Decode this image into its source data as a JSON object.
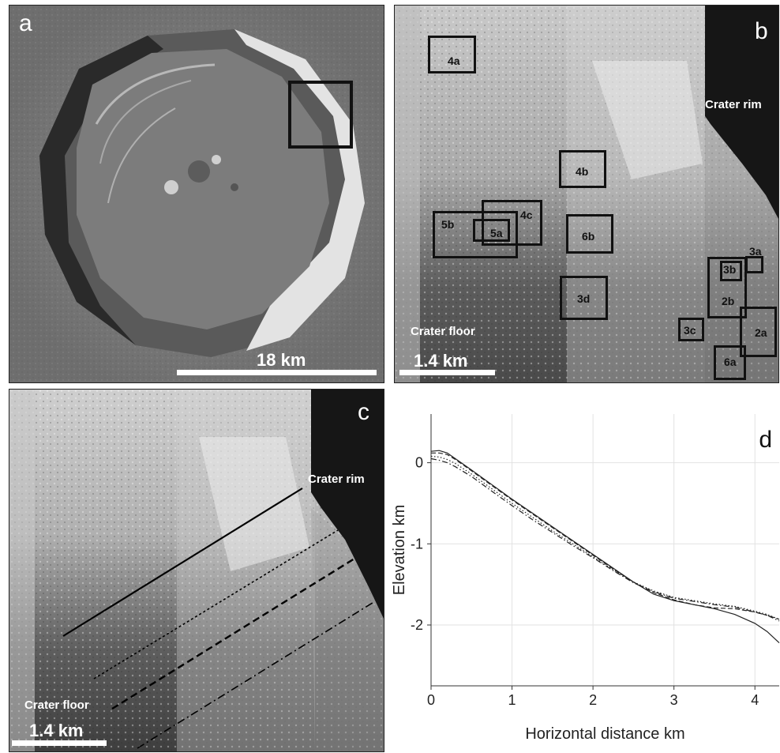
{
  "panels": {
    "a": {
      "label": "a",
      "scale_label": "18 km"
    },
    "b": {
      "label": "b",
      "crater_rim": "Crater rim",
      "crater_floor": "Crater floor",
      "scale_label": "1.4 km",
      "boxes": [
        "4a",
        "4b",
        "4c",
        "5a",
        "5b",
        "6b",
        "3d",
        "3a",
        "3b",
        "2b",
        "2a",
        "3c",
        "6a"
      ]
    },
    "c": {
      "label": "c",
      "crater_rim": "Crater rim",
      "crater_floor": "Crater floor",
      "scale_label": "1.4 km"
    }
  },
  "chart_data": {
    "type": "line",
    "panel_label": "d",
    "xlabel": "Horizontal distance km",
    "ylabel": "Elevation km",
    "xlim": [
      0,
      4.3
    ],
    "ylim": [
      -2.75,
      0.6
    ],
    "xticks": [
      "0",
      "1",
      "2",
      "3",
      "4"
    ],
    "yticks": [
      "0",
      "-1",
      "-2"
    ],
    "grid": true,
    "series": [
      {
        "style": "solid",
        "x": [
          0,
          0.1,
          0.2,
          0.3,
          0.5,
          0.75,
          1.0,
          1.25,
          1.5,
          1.75,
          2.0,
          2.25,
          2.5,
          2.75,
          3.0,
          3.25,
          3.5,
          3.75,
          4.0,
          4.15,
          4.3
        ],
        "y": [
          0.14,
          0.15,
          0.12,
          0.05,
          -0.09,
          -0.27,
          -0.45,
          -0.62,
          -0.79,
          -0.96,
          -1.13,
          -1.3,
          -1.47,
          -1.62,
          -1.7,
          -1.75,
          -1.8,
          -1.87,
          -1.98,
          -2.08,
          -2.22
        ]
      },
      {
        "style": "dashed",
        "x": [
          0,
          0.1,
          0.2,
          0.3,
          0.5,
          0.75,
          1.0,
          1.25,
          1.5,
          1.75,
          2.0,
          2.25,
          2.5,
          2.75,
          3.0,
          3.25,
          3.5,
          3.75,
          4.0,
          4.15,
          4.3
        ],
        "y": [
          0.12,
          0.12,
          0.1,
          0.04,
          -0.1,
          -0.28,
          -0.46,
          -0.63,
          -0.8,
          -0.97,
          -1.14,
          -1.31,
          -1.47,
          -1.6,
          -1.69,
          -1.75,
          -1.79,
          -1.8,
          -1.84,
          -1.88,
          -1.93
        ]
      },
      {
        "style": "dotted",
        "x": [
          0,
          0.1,
          0.2,
          0.3,
          0.5,
          0.75,
          1.0,
          1.25,
          1.5,
          1.75,
          2.0,
          2.25,
          2.5,
          2.75,
          3.0,
          3.25,
          3.5,
          3.75,
          4.0,
          4.15,
          4.3
        ],
        "y": [
          0.08,
          0.07,
          0.04,
          -0.01,
          -0.14,
          -0.32,
          -0.5,
          -0.67,
          -0.84,
          -1.0,
          -1.16,
          -1.32,
          -1.47,
          -1.58,
          -1.66,
          -1.7,
          -1.74,
          -1.77,
          -1.83,
          -1.87,
          -1.93
        ]
      },
      {
        "style": "dashdot",
        "x": [
          0,
          0.1,
          0.2,
          0.3,
          0.5,
          0.75,
          1.0,
          1.25,
          1.5,
          1.75,
          2.0,
          2.25,
          2.5,
          2.75,
          3.0,
          3.25,
          3.5,
          3.75,
          4.0,
          4.15,
          4.3
        ],
        "y": [
          0.05,
          0.03,
          0.0,
          -0.05,
          -0.17,
          -0.35,
          -0.53,
          -0.7,
          -0.86,
          -1.02,
          -1.17,
          -1.33,
          -1.48,
          -1.59,
          -1.67,
          -1.71,
          -1.75,
          -1.78,
          -1.84,
          -1.88,
          -1.95
        ]
      }
    ]
  }
}
